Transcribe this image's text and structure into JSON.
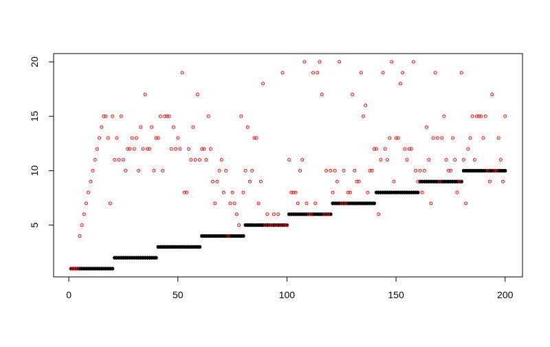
{
  "chart_data": {
    "type": "scatter",
    "x": [
      1,
      2,
      3,
      4,
      5,
      6,
      7,
      8,
      9,
      10,
      11,
      12,
      13,
      14,
      15,
      16,
      17,
      18,
      19,
      20,
      21,
      22,
      23,
      24,
      25,
      26,
      27,
      28,
      29,
      30,
      31,
      32,
      33,
      34,
      35,
      36,
      37,
      38,
      39,
      40,
      41,
      42,
      43,
      44,
      45,
      46,
      47,
      48,
      49,
      50,
      51,
      52,
      53,
      54,
      55,
      56,
      57,
      58,
      59,
      60,
      61,
      62,
      63,
      64,
      65,
      66,
      67,
      68,
      69,
      70,
      71,
      72,
      73,
      74,
      75,
      76,
      77,
      78,
      79,
      80,
      81,
      82,
      83,
      84,
      85,
      86,
      87,
      88,
      89,
      90,
      91,
      92,
      93,
      94,
      95,
      96,
      97,
      98,
      99,
      100,
      101,
      102,
      103,
      104,
      105,
      106,
      107,
      108,
      109,
      110,
      111,
      112,
      113,
      114,
      115,
      116,
      117,
      118,
      119,
      120,
      121,
      122,
      123,
      124,
      125,
      126,
      127,
      128,
      129,
      130,
      131,
      132,
      133,
      134,
      135,
      136,
      137,
      138,
      139,
      140,
      141,
      142,
      143,
      144,
      145,
      146,
      147,
      148,
      149,
      150,
      151,
      152,
      153,
      154,
      155,
      156,
      157,
      158,
      159,
      160,
      161,
      162,
      163,
      164,
      165,
      166,
      167,
      168,
      169,
      170,
      171,
      172,
      173,
      174,
      175,
      176,
      177,
      178,
      179,
      180,
      181,
      182,
      183,
      184,
      185,
      186,
      187,
      188,
      189,
      190,
      191,
      192,
      193,
      194,
      195,
      196,
      197,
      198,
      199,
      200
    ],
    "series": [
      {
        "color": "#000000",
        "filled": true,
        "values": [
          1,
          1,
          1,
          1,
          1,
          1,
          1,
          1,
          1,
          1,
          1,
          1,
          1,
          1,
          1,
          1,
          1,
          1,
          1,
          1,
          2,
          2,
          2,
          2,
          2,
          2,
          2,
          2,
          2,
          2,
          2,
          2,
          2,
          2,
          2,
          2,
          2,
          2,
          2,
          2,
          3,
          3,
          3,
          3,
          3,
          3,
          3,
          3,
          3,
          3,
          3,
          3,
          3,
          3,
          3,
          3,
          3,
          3,
          3,
          3,
          4,
          4,
          4,
          4,
          4,
          4,
          4,
          4,
          4,
          4,
          4,
          4,
          4,
          4,
          4,
          4,
          4,
          4,
          4,
          4,
          5,
          5,
          5,
          5,
          5,
          5,
          5,
          5,
          5,
          5,
          5,
          5,
          5,
          5,
          5,
          5,
          5,
          5,
          5,
          5,
          6,
          6,
          6,
          6,
          6,
          6,
          6,
          6,
          6,
          6,
          6,
          6,
          6,
          6,
          6,
          6,
          6,
          6,
          6,
          6,
          7,
          7,
          7,
          7,
          7,
          7,
          7,
          7,
          7,
          7,
          7,
          7,
          7,
          7,
          7,
          7,
          7,
          7,
          7,
          7,
          8,
          8,
          8,
          8,
          8,
          8,
          8,
          8,
          8,
          8,
          8,
          8,
          8,
          8,
          8,
          8,
          8,
          8,
          8,
          8,
          9,
          9,
          9,
          9,
          9,
          9,
          9,
          9,
          9,
          9,
          9,
          9,
          9,
          9,
          9,
          9,
          9,
          9,
          9,
          9,
          10,
          10,
          10,
          10,
          10,
          10,
          10,
          10,
          10,
          10,
          10,
          10,
          10,
          10,
          10,
          10,
          10,
          10,
          10,
          10
        ]
      },
      {
        "color": "#ff0000",
        "filled": false,
        "values": [
          1,
          1,
          1,
          1,
          4,
          5,
          6,
          7,
          8,
          9,
          10,
          11,
          12,
          13,
          14,
          15,
          15,
          13,
          7,
          15,
          11,
          13,
          11,
          15,
          11,
          10,
          12,
          12,
          13,
          12,
          13,
          10,
          14,
          12,
          17,
          12,
          12,
          14,
          10,
          13,
          13,
          15,
          10,
          15,
          15,
          15,
          12,
          14,
          12,
          13,
          12,
          19,
          8,
          8,
          12,
          11,
          14,
          11,
          17,
          11,
          12,
          12,
          11,
          15,
          12,
          9,
          7,
          9,
          10,
          11,
          8,
          10,
          4,
          7,
          8,
          7,
          6,
          5,
          15,
          8,
          10,
          14,
          9,
          10,
          13,
          13,
          7,
          9,
          18,
          5,
          6,
          5,
          5,
          6,
          5,
          6,
          5,
          19,
          5,
          5,
          11,
          8,
          8,
          8,
          7,
          10,
          11,
          20,
          7,
          6,
          6,
          19,
          7,
          19,
          20,
          17,
          6,
          10,
          6,
          10,
          8,
          10,
          9,
          20,
          7,
          10,
          7,
          8,
          8,
          17,
          10,
          9,
          9,
          19,
          15,
          16,
          8,
          10,
          10,
          12,
          12,
          6,
          11,
          19,
          12,
          11,
          13,
          20,
          9,
          13,
          13,
          18,
          19,
          12,
          11,
          12,
          12,
          20,
          10,
          9,
          10,
          8,
          10,
          14,
          11,
          7,
          13,
          19,
          13,
          9,
          13,
          15,
          11,
          10,
          10,
          13,
          11,
          8,
          9,
          19,
          11,
          7,
          12,
          13,
          15,
          11,
          15,
          15,
          15,
          13,
          15,
          10,
          9,
          17,
          10,
          10,
          13,
          11,
          9,
          15
        ]
      }
    ],
    "xlim": [
      -6.96,
      207.96
    ],
    "xticks": [
      0,
      50,
      100,
      150,
      200
    ],
    "ylim": [
      0.24,
      20.76
    ],
    "yticks": [
      5,
      10,
      15,
      20
    ]
  }
}
